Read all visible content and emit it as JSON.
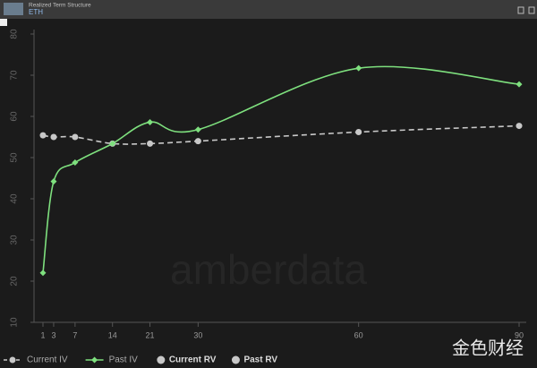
{
  "header": {
    "title": "Realized Term Structure",
    "subtitle": "ETH"
  },
  "chart_data": {
    "type": "line",
    "xlim": [
      1,
      90
    ],
    "xticks": [
      1,
      3,
      7,
      14,
      21,
      30,
      60,
      90
    ],
    "ylim": [
      10,
      80
    ],
    "yticks": [
      10,
      20,
      30,
      40,
      50,
      60,
      70,
      80
    ],
    "x": [
      1,
      3,
      7,
      14,
      21,
      30,
      60,
      90
    ],
    "series": [
      {
        "name": "Current IV",
        "color": "#c8c8c8",
        "dashed": true,
        "marker": "circle",
        "values": [
          55.4,
          55,
          55,
          53.4,
          53.4,
          54,
          56.2,
          57.7
        ]
      },
      {
        "name": "Past IV",
        "color": "#7ee07e",
        "dashed": false,
        "marker": "diamond",
        "values": [
          22,
          44.2,
          48.8,
          53.4,
          58.6,
          56.8,
          71.7,
          67.8
        ]
      }
    ],
    "legend_only": [
      {
        "name": "Current RV",
        "color": "#c8c8c8"
      },
      {
        "name": "Past RV",
        "color": "#c8c8c8"
      }
    ]
  },
  "watermarks": [
    "amberdata",
    "金色财经"
  ]
}
